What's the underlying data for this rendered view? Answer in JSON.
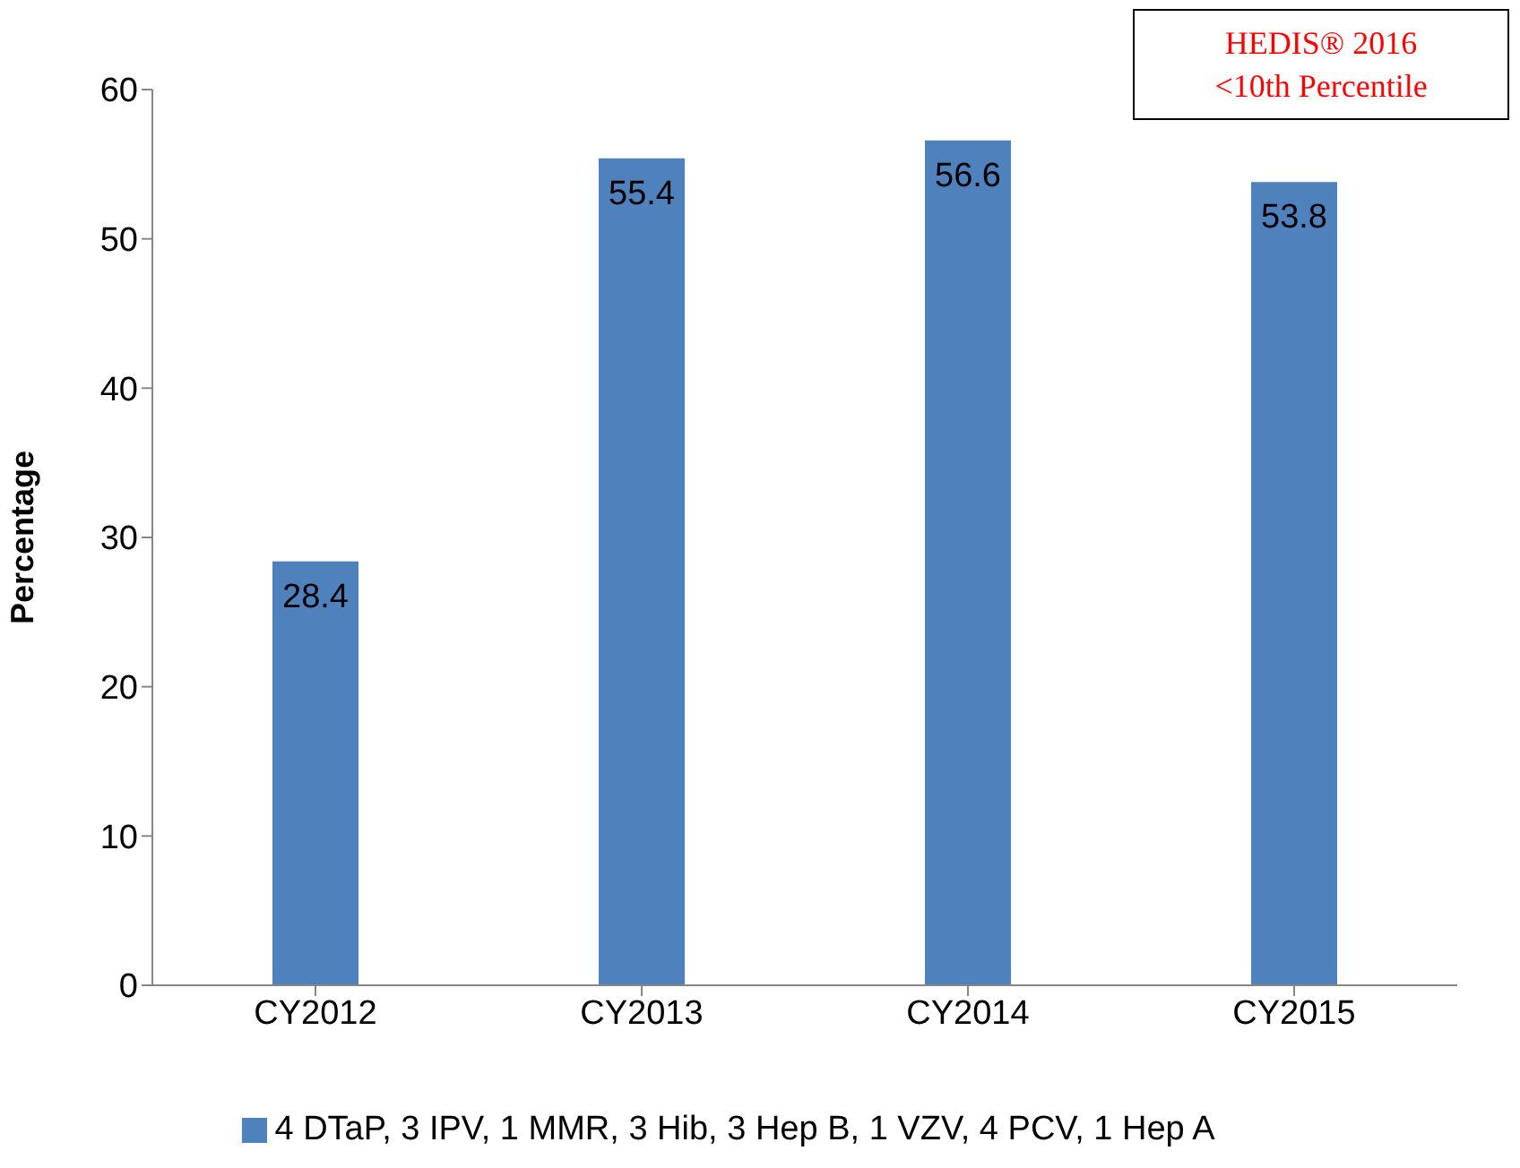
{
  "chart_data": {
    "type": "bar",
    "ylabel": "Percentage",
    "categories": [
      "CY2012",
      "CY2013",
      "CY2014",
      "CY2015"
    ],
    "series": [
      {
        "name": "4 DTaP, 3 IPV, 1 MMR, 3 Hib, 3 Hep B, 1 VZV, 4 PCV, 1 Hep A",
        "color": "#4f81bd",
        "values": [
          28.4,
          55.4,
          56.6,
          53.8
        ]
      }
    ],
    "ylim": [
      0,
      60
    ],
    "yticks": [
      0,
      10,
      20,
      30,
      40,
      50,
      60
    ],
    "grid": false,
    "legend": "bottom",
    "data_labels": true,
    "annotations": [
      "HEDIS® 2016\n<10th Percentile"
    ]
  }
}
